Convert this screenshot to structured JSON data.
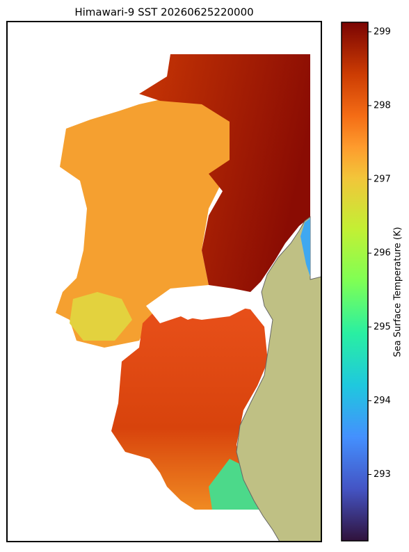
{
  "map": {
    "title": "Himawari-9 SST 20260625220000"
  },
  "colorbar": {
    "label": "Sea Surface Temperature (K)",
    "lim": [
      292.1,
      299.13
    ],
    "ticks": [
      293,
      294,
      295,
      296,
      297,
      298,
      299
    ]
  }
}
